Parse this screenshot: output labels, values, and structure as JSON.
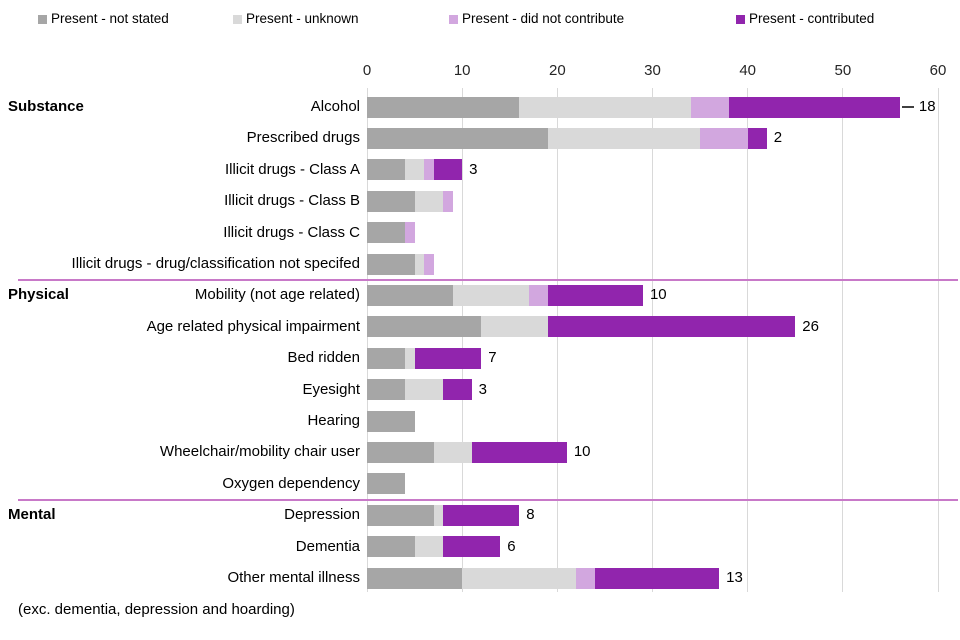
{
  "chart_data": {
    "type": "bar",
    "orientation": "horizontal",
    "stacked": true,
    "title": "",
    "xlabel": "",
    "ylabel": "",
    "xlim": [
      0,
      60
    ],
    "x_ticks": [
      0,
      10,
      20,
      30,
      40,
      50,
      60
    ],
    "grid": true,
    "legend_position": "top",
    "legend": [
      {
        "key": "not-stated",
        "label": "Present - not stated",
        "color": "#A6A6A6"
      },
      {
        "key": "unknown",
        "label": "Present - unknown",
        "color": "#D9D9D9"
      },
      {
        "key": "did-not-contribute",
        "label": "Present - did not contribute",
        "color": "#D2A7DF"
      },
      {
        "key": "contributed",
        "label": "Present - contributed",
        "color": "#9125AD"
      }
    ],
    "series_names": [
      "Present - not stated",
      "Present - unknown",
      "Present - did not contribute",
      "Present - contributed"
    ],
    "groups": [
      {
        "name": "Substance",
        "rows": [
          {
            "label": "Alcohol",
            "values": [
              16,
              18,
              4,
              18
            ],
            "annotation": "18",
            "leader": true
          },
          {
            "label": "Prescribed drugs",
            "values": [
              19,
              16,
              5,
              2
            ],
            "annotation": "2"
          },
          {
            "label": "Illicit drugs - Class A",
            "values": [
              4,
              2,
              1,
              3
            ],
            "annotation": "3"
          },
          {
            "label": "Illicit drugs - Class B",
            "values": [
              5,
              3,
              1,
              0
            ]
          },
          {
            "label": "Illicit drugs - Class C",
            "values": [
              4,
              0,
              1,
              0
            ]
          },
          {
            "label": "Illicit drugs - drug/classification not specifed",
            "values": [
              5,
              1,
              1,
              0
            ]
          }
        ]
      },
      {
        "name": "Physical",
        "rows": [
          {
            "label": "Mobility (not age related)",
            "values": [
              9,
              8,
              2,
              10
            ],
            "annotation": "10"
          },
          {
            "label": "Age related physical impairment",
            "values": [
              12,
              7,
              0,
              26
            ],
            "annotation": "26"
          },
          {
            "label": "Bed ridden",
            "values": [
              4,
              1,
              0,
              7
            ],
            "annotation": "7"
          },
          {
            "label": "Eyesight",
            "values": [
              4,
              4,
              0,
              3
            ],
            "annotation": "3"
          },
          {
            "label": "Hearing",
            "values": [
              5,
              0,
              0,
              0
            ]
          },
          {
            "label": "Wheelchair/mobility chair user",
            "values": [
              7,
              4,
              0,
              10
            ],
            "annotation": "10"
          },
          {
            "label": "Oxygen dependency",
            "values": [
              4,
              0,
              0,
              0
            ]
          }
        ]
      },
      {
        "name": "Mental",
        "rows": [
          {
            "label": "Depression",
            "values": [
              7,
              1,
              0,
              8
            ],
            "annotation": "8"
          },
          {
            "label": "Dementia",
            "values": [
              5,
              3,
              0,
              6
            ],
            "annotation": "6"
          },
          {
            "label": "Other mental illness",
            "values": [
              10,
              12,
              2,
              13
            ],
            "annotation": "13"
          }
        ]
      }
    ],
    "footnote": "(exc. dementia, depression and hoarding)",
    "divider_color": "#C879C8",
    "gridline_color": "#D9D9D9"
  }
}
